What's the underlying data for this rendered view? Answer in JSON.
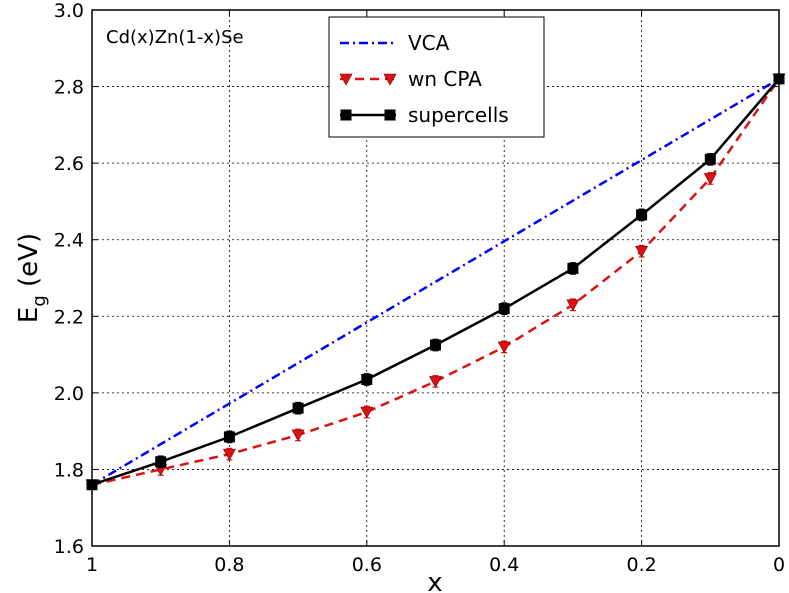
{
  "chart_data": {
    "type": "line",
    "title": "",
    "annotation": "Cd(x)Zn(1-x)Se",
    "xlabel": "x",
    "ylabel_main": "E",
    "ylabel_sub": "g",
    "ylabel_rest": "  (eV)",
    "xlim": [
      1,
      0
    ],
    "ylim": [
      1.6,
      3.0
    ],
    "x_ticks": [
      1,
      0.8,
      0.6,
      0.4,
      0.2,
      0
    ],
    "x_tick_labels": [
      "1",
      "0.8",
      "0.6",
      "0.4",
      "0.2",
      "0"
    ],
    "y_ticks": [
      1.6,
      1.8,
      2.0,
      2.2,
      2.4,
      2.6,
      2.8,
      3.0
    ],
    "y_tick_labels": [
      "1.6",
      "1.8",
      "2.0",
      "2.2",
      "2.4",
      "2.6",
      "2.8",
      "3.0"
    ],
    "grid": true,
    "legend_position": "top-center",
    "series": [
      {
        "name": "VCA",
        "color": "#0000ff",
        "line_style": "dash-dot",
        "marker": "none",
        "x": [
          1.0,
          0.0
        ],
        "values": [
          1.76,
          2.82
        ]
      },
      {
        "name": "wn CPA",
        "color": "#dd1111",
        "line_style": "dashed",
        "marker": "triangle-down",
        "x": [
          1.0,
          0.9,
          0.8,
          0.7,
          0.6,
          0.5,
          0.4,
          0.3,
          0.2,
          0.1,
          0.0
        ],
        "values": [
          1.76,
          1.8,
          1.84,
          1.89,
          1.95,
          2.03,
          2.12,
          2.23,
          2.37,
          2.56,
          2.82
        ],
        "error": [
          0.01,
          0.015,
          0.015,
          0.015,
          0.015,
          0.015,
          0.015,
          0.015,
          0.015,
          0.015,
          0.01
        ]
      },
      {
        "name": "supercells",
        "color": "#000000",
        "line_style": "solid",
        "marker": "square",
        "x": [
          1.0,
          0.9,
          0.8,
          0.7,
          0.6,
          0.5,
          0.4,
          0.3,
          0.2,
          0.1,
          0.0
        ],
        "values": [
          1.76,
          1.82,
          1.885,
          1.96,
          2.035,
          2.125,
          2.22,
          2.325,
          2.465,
          2.61,
          2.82
        ],
        "error": [
          0.008,
          0.015,
          0.015,
          0.015,
          0.015,
          0.015,
          0.015,
          0.015,
          0.015,
          0.015,
          0.008
        ]
      }
    ]
  }
}
